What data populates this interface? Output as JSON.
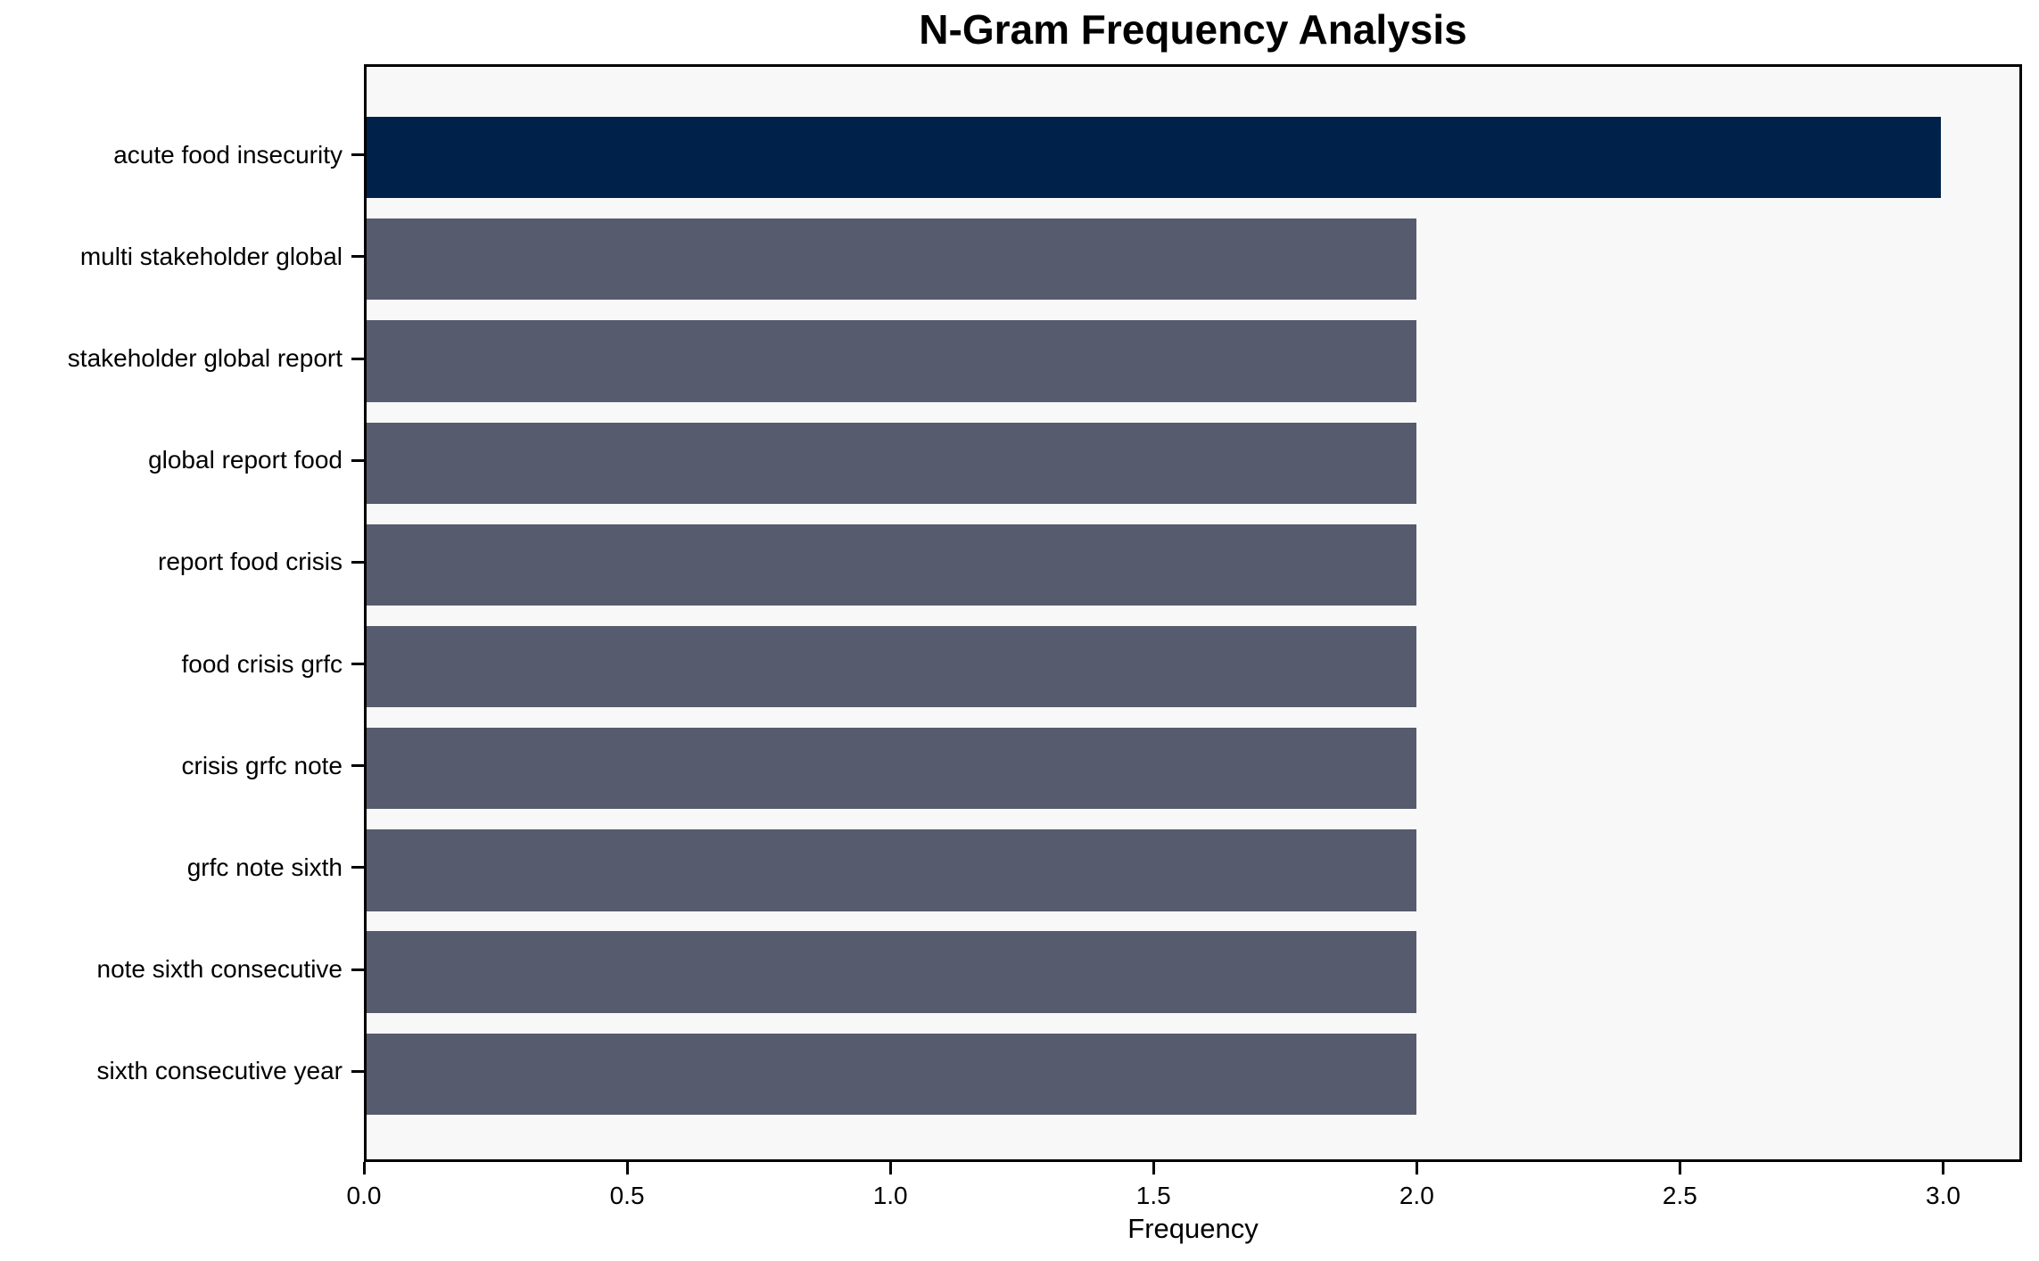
{
  "chart_data": {
    "type": "bar",
    "orientation": "horizontal",
    "title": "N-Gram Frequency Analysis",
    "xlabel": "Frequency",
    "ylabel": "",
    "categories": [
      "acute food insecurity",
      "multi stakeholder global",
      "stakeholder global report",
      "global report food",
      "report food crisis",
      "food crisis grfc",
      "crisis grfc note",
      "grfc note sixth",
      "note sixth consecutive",
      "sixth consecutive year"
    ],
    "values": [
      3,
      2,
      2,
      2,
      2,
      2,
      2,
      2,
      2,
      2
    ],
    "xlim": [
      0,
      3.15
    ],
    "xtick_values": [
      0.0,
      0.5,
      1.0,
      1.5,
      2.0,
      2.5,
      3.0
    ],
    "xtick_labels": [
      "0.0",
      "0.5",
      "1.0",
      "1.5",
      "2.0",
      "2.5",
      "3.0"
    ],
    "grid": false,
    "legend": null,
    "colors": {
      "bar_highlight": "#002149",
      "bar_default": "#565C6D",
      "plot_background": "#F8F8F9",
      "axis": "#000000",
      "text": "#000000"
    }
  }
}
